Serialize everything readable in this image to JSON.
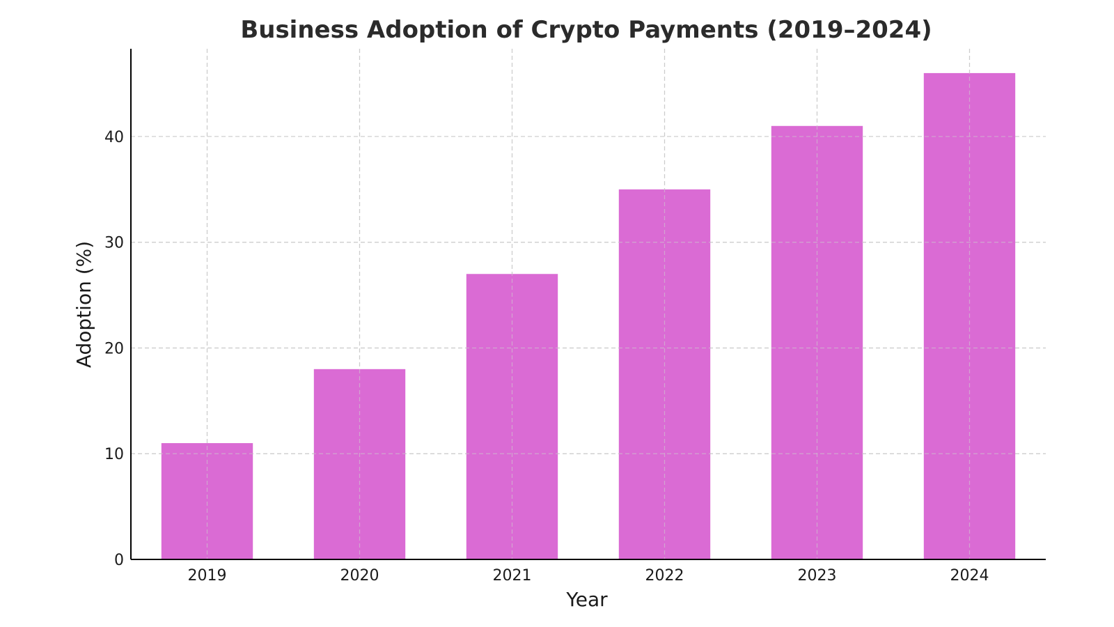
{
  "chart_data": {
    "type": "bar",
    "title": "Business Adoption of Crypto Payments (2019–2024)",
    "xlabel": "Year",
    "ylabel": "Adoption (%)",
    "categories": [
      "2019",
      "2020",
      "2021",
      "2022",
      "2023",
      "2024"
    ],
    "values": [
      11,
      18,
      27,
      35,
      41,
      46
    ],
    "ylim": [
      0,
      48.3
    ],
    "yticks": [
      0,
      10,
      20,
      30,
      40
    ],
    "grid": true,
    "bar_color": "#da6bd4",
    "grid_color": "#cccccc",
    "axis_color": "#000000"
  }
}
